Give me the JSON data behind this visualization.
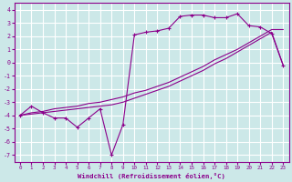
{
  "background_color": "#cce8e8",
  "grid_color": "#ffffff",
  "line_color": "#8b008b",
  "marker": "+",
  "xlabel": "Windchill (Refroidissement éolien,°C)",
  "xlim": [
    -0.5,
    23.5
  ],
  "ylim": [
    -7.5,
    4.5
  ],
  "xticks": [
    0,
    1,
    2,
    3,
    4,
    5,
    6,
    7,
    8,
    9,
    10,
    11,
    12,
    13,
    14,
    15,
    16,
    17,
    18,
    19,
    20,
    21,
    22,
    23
  ],
  "yticks": [
    -7,
    -6,
    -5,
    -4,
    -3,
    -2,
    -1,
    0,
    1,
    2,
    3,
    4
  ],
  "line1_x": [
    0,
    1,
    2,
    3,
    4,
    5,
    6,
    7,
    8,
    9,
    10,
    11,
    12,
    13,
    14,
    15,
    16,
    17,
    18,
    19,
    20,
    21,
    22,
    23
  ],
  "line1_y": [
    -4.0,
    -3.3,
    -3.8,
    -4.2,
    -4.2,
    -4.9,
    -4.2,
    -3.5,
    -7.0,
    -4.7,
    2.1,
    2.3,
    2.4,
    2.6,
    3.5,
    3.6,
    3.6,
    3.4,
    3.4,
    3.7,
    2.8,
    2.7,
    2.2,
    -0.2
  ],
  "line2_x": [
    0,
    1,
    2,
    3,
    4,
    5,
    6,
    7,
    8,
    9,
    10,
    11,
    12,
    13,
    14,
    15,
    16,
    17,
    18,
    19,
    20,
    21,
    22,
    23
  ],
  "line2_y": [
    -4.0,
    -3.8,
    -3.7,
    -3.5,
    -3.4,
    -3.3,
    -3.1,
    -3.0,
    -2.8,
    -2.6,
    -2.3,
    -2.1,
    -1.8,
    -1.5,
    -1.1,
    -0.7,
    -0.3,
    0.2,
    0.6,
    1.0,
    1.5,
    2.0,
    2.5,
    2.5
  ],
  "line3_x": [
    0,
    1,
    2,
    3,
    4,
    5,
    6,
    7,
    8,
    9,
    10,
    11,
    12,
    13,
    14,
    15,
    16,
    17,
    18,
    19,
    20,
    21,
    22,
    23
  ],
  "line3_y": [
    -4.0,
    -3.9,
    -3.8,
    -3.7,
    -3.6,
    -3.5,
    -3.4,
    -3.3,
    -3.2,
    -3.0,
    -2.7,
    -2.4,
    -2.1,
    -1.8,
    -1.4,
    -1.0,
    -0.6,
    -0.1,
    0.3,
    0.8,
    1.3,
    1.8,
    2.3,
    -0.2
  ]
}
